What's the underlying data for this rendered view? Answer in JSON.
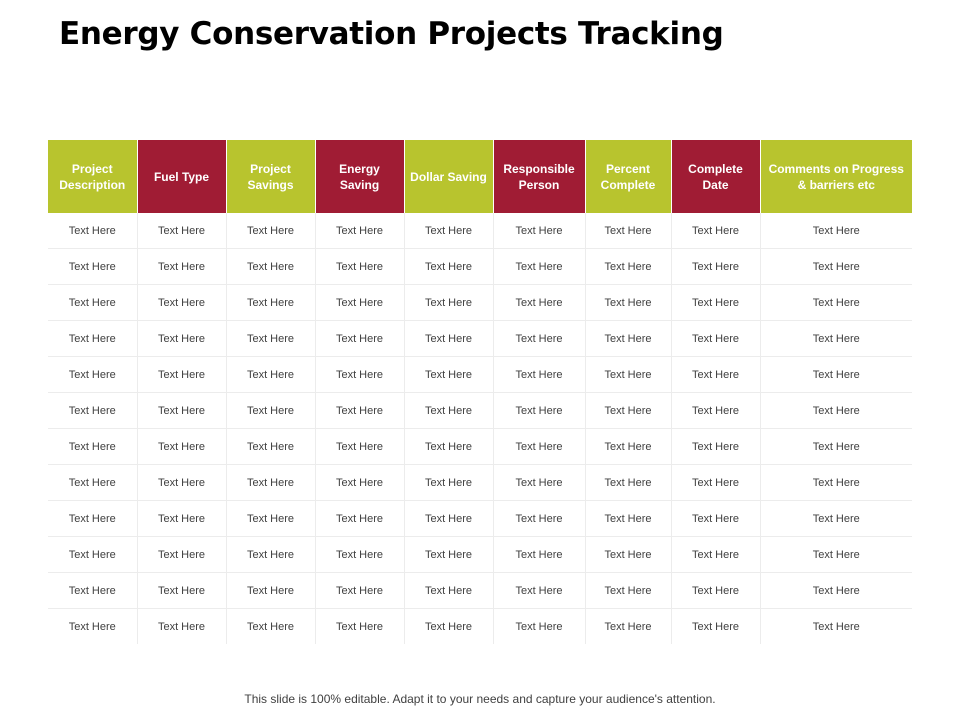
{
  "title": "Energy Conservation Projects Tracking",
  "colors": {
    "green": "#b8c42e",
    "red": "#a01c34"
  },
  "table": {
    "headers": [
      {
        "label": "Project Description",
        "color": "green"
      },
      {
        "label": "Fuel Type",
        "color": "red"
      },
      {
        "label": "Project Savings",
        "color": "green"
      },
      {
        "label": "Energy Saving",
        "color": "red"
      },
      {
        "label": "Dollar Saving",
        "color": "green"
      },
      {
        "label": "Responsible Person",
        "color": "red"
      },
      {
        "label": "Percent Complete",
        "color": "green"
      },
      {
        "label": "Complete Date",
        "color": "red"
      },
      {
        "label": "Comments on Progress & barriers etc",
        "color": "green"
      }
    ],
    "rows": [
      [
        "Text Here",
        "Text Here",
        "Text Here",
        "Text Here",
        "Text Here",
        "Text Here",
        "Text Here",
        "Text Here",
        "Text Here"
      ],
      [
        "Text Here",
        "Text Here",
        "Text Here",
        "Text Here",
        "Text Here",
        "Text Here",
        "Text Here",
        "Text Here",
        "Text Here"
      ],
      [
        "Text Here",
        "Text Here",
        "Text Here",
        "Text Here",
        "Text Here",
        "Text Here",
        "Text Here",
        "Text Here",
        "Text Here"
      ],
      [
        "Text Here",
        "Text Here",
        "Text Here",
        "Text Here",
        "Text Here",
        "Text Here",
        "Text Here",
        "Text Here",
        "Text Here"
      ],
      [
        "Text Here",
        "Text Here",
        "Text Here",
        "Text Here",
        "Text Here",
        "Text Here",
        "Text Here",
        "Text Here",
        "Text Here"
      ],
      [
        "Text Here",
        "Text Here",
        "Text Here",
        "Text Here",
        "Text Here",
        "Text Here",
        "Text Here",
        "Text Here",
        "Text Here"
      ],
      [
        "Text Here",
        "Text Here",
        "Text Here",
        "Text Here",
        "Text Here",
        "Text Here",
        "Text Here",
        "Text Here",
        "Text Here"
      ],
      [
        "Text Here",
        "Text Here",
        "Text Here",
        "Text Here",
        "Text Here",
        "Text Here",
        "Text Here",
        "Text Here",
        "Text Here"
      ],
      [
        "Text Here",
        "Text Here",
        "Text Here",
        "Text Here",
        "Text Here",
        "Text Here",
        "Text Here",
        "Text Here",
        "Text Here"
      ],
      [
        "Text Here",
        "Text Here",
        "Text Here",
        "Text Here",
        "Text Here",
        "Text Here",
        "Text Here",
        "Text Here",
        "Text Here"
      ],
      [
        "Text Here",
        "Text Here",
        "Text Here",
        "Text Here",
        "Text Here",
        "Text Here",
        "Text Here",
        "Text Here",
        "Text Here"
      ],
      [
        "Text Here",
        "Text Here",
        "Text Here",
        "Text Here",
        "Text Here",
        "Text Here",
        "Text Here",
        "Text Here",
        "Text Here"
      ]
    ]
  },
  "footer": "This slide is 100% editable. Adapt it to your needs and capture your audience's attention."
}
